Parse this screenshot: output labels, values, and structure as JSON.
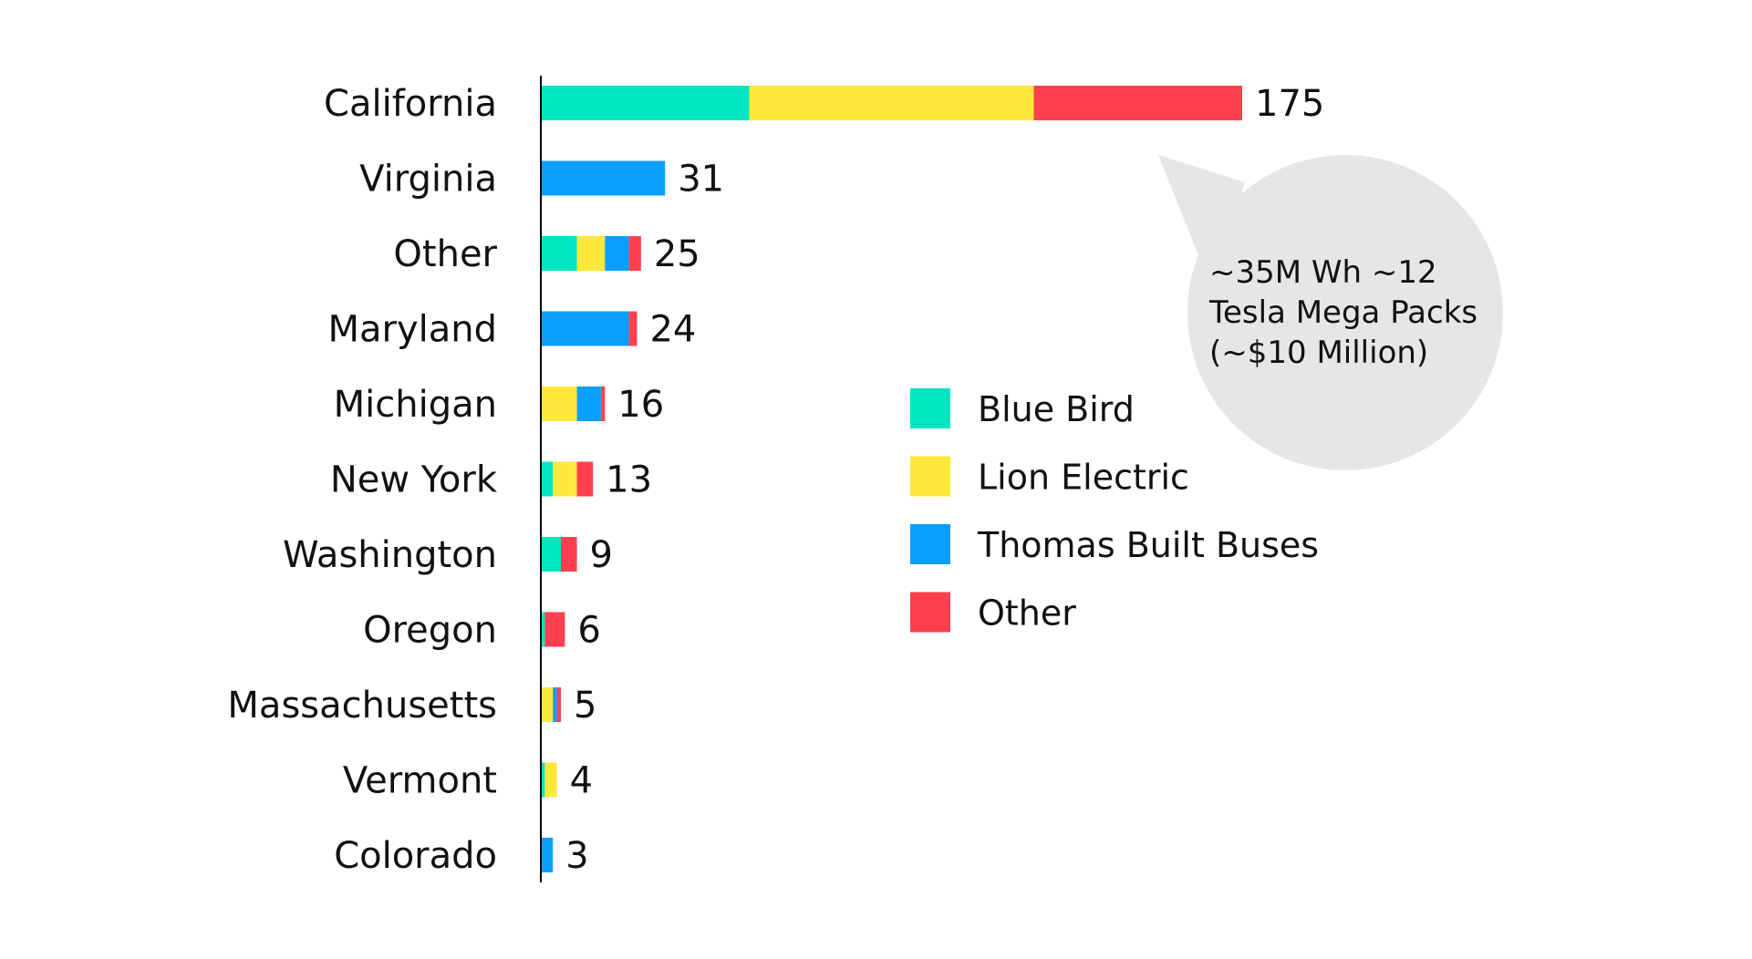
{
  "chart_data": {
    "type": "bar",
    "orientation": "horizontal",
    "stacked": true,
    "categories": [
      "California",
      "Virginia",
      "Other",
      "Maryland",
      "Michigan",
      "New York",
      "Washington",
      "Oregon",
      "Massachusetts",
      "Vermont",
      "Colorado"
    ],
    "totals": [
      175,
      31,
      25,
      24,
      16,
      13,
      9,
      6,
      5,
      4,
      3
    ],
    "series": [
      {
        "name": "Blue Bird",
        "color": "#00E5C1",
        "values": [
          52,
          0,
          9,
          0,
          0,
          3,
          5,
          1,
          0,
          1,
          0
        ]
      },
      {
        "name": "Lion Electric",
        "color": "#FFE83C",
        "values": [
          71,
          0,
          7,
          0,
          9,
          6,
          0,
          0,
          3,
          3,
          0
        ]
      },
      {
        "name": "Thomas Built Buses",
        "color": "#0A9EFF",
        "values": [
          0,
          31,
          6,
          22,
          6,
          0,
          0,
          0,
          1,
          0,
          3
        ]
      },
      {
        "name": "Other",
        "color": "#FF414F",
        "values": [
          52,
          0,
          3,
          2,
          1,
          4,
          4,
          5,
          1,
          0,
          0
        ]
      }
    ],
    "xlim": [
      0,
      175
    ],
    "grid": false,
    "legend_position": "center-right",
    "annotation": {
      "lines": [
        "~35M Wh ~12",
        "Tesla Mega Packs",
        "(~$10 Million)"
      ],
      "target": "California",
      "shape": "speech-bubble"
    }
  }
}
